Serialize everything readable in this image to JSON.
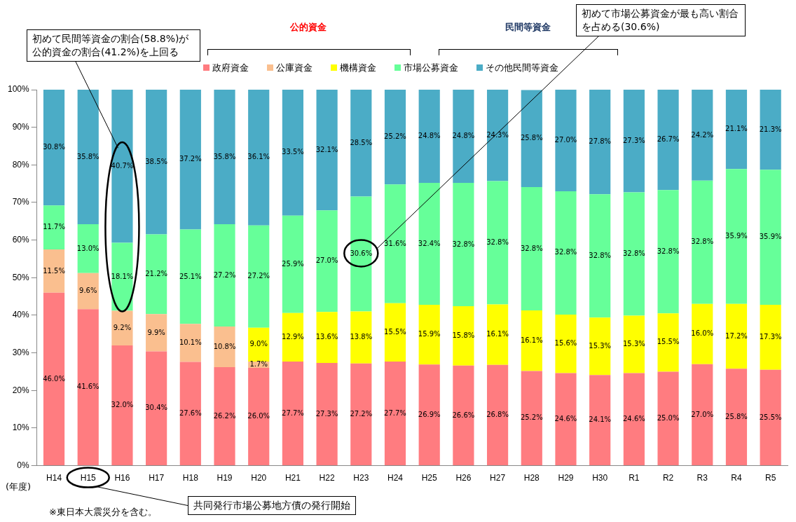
{
  "chart_data": {
    "type": "bar",
    "stacked": true,
    "xlabel": "(年度)",
    "categories": [
      "H14",
      "H15",
      "H16",
      "H17",
      "H18",
      "H19",
      "H20",
      "H21",
      "H22",
      "H23",
      "H24",
      "H25",
      "H26",
      "H27",
      "H28",
      "H29",
      "H30",
      "R1",
      "R2",
      "R3",
      "R4",
      "R5"
    ],
    "series": [
      {
        "name": "政府資金",
        "color": "#ff7c80",
        "values": [
          46.0,
          41.6,
          32.0,
          30.4,
          27.6,
          26.2,
          26.0,
          27.7,
          27.3,
          27.2,
          27.7,
          26.9,
          26.6,
          26.8,
          25.2,
          24.6,
          24.1,
          24.6,
          25.0,
          27.0,
          25.8,
          25.5
        ],
        "value_labels": [
          "46.0%",
          "41.6%",
          "32.0%",
          "30.4%",
          "27.6%",
          "26.2%",
          "26.0%",
          "27.7%",
          "27.3%",
          "27.2%",
          "27.7%",
          "26.9%",
          "26.6%",
          "26.8%",
          "25.2%",
          "24.6%",
          "24.1%",
          "24.6%",
          "25.0%",
          "27.0%",
          "25.8%",
          "25.5%"
        ]
      },
      {
        "name": "公庫資金",
        "color": "#fabf8f",
        "values": [
          11.5,
          9.6,
          9.2,
          9.9,
          10.1,
          10.8,
          1.7,
          null,
          null,
          null,
          null,
          null,
          null,
          null,
          null,
          null,
          null,
          null,
          null,
          null,
          null,
          null
        ],
        "value_labels": [
          "11.5%",
          "9.6%",
          "9.2%",
          "9.9%",
          "10.1%",
          "10.8%",
          "1.7%",
          null,
          null,
          null,
          null,
          null,
          null,
          null,
          null,
          null,
          null,
          null,
          null,
          null,
          null,
          null
        ]
      },
      {
        "name": "機構資金",
        "color": "#ffff00",
        "values": [
          null,
          null,
          null,
          null,
          null,
          null,
          9.0,
          12.9,
          13.6,
          13.8,
          15.5,
          15.9,
          15.8,
          16.1,
          16.1,
          15.6,
          15.3,
          15.3,
          15.5,
          16.0,
          17.2,
          17.3
        ],
        "value_labels": [
          null,
          null,
          null,
          null,
          null,
          null,
          "9.0%",
          "12.9%",
          "13.6%",
          "13.8%",
          "15.5%",
          "15.9%",
          "15.8%",
          "16.1%",
          "16.1%",
          "15.6%",
          "15.3%",
          "15.3%",
          "15.5%",
          "16.0%",
          "17.2%",
          "17.3%"
        ]
      },
      {
        "name": "市場公募資金",
        "color": "#66ff99",
        "values": [
          11.7,
          13.0,
          18.1,
          21.2,
          25.1,
          27.2,
          27.2,
          25.9,
          27.0,
          30.6,
          31.6,
          32.4,
          32.8,
          32.8,
          32.8,
          32.8,
          32.8,
          32.8,
          32.8,
          32.8,
          35.9,
          35.9
        ],
        "value_labels": [
          "11.7%",
          "13.0%",
          "18.1%",
          "21.2%",
          "25.1%",
          "27.2%",
          "27.2%",
          "25.9%",
          "27.0%",
          "30.6%",
          "31.6%",
          "32.4%",
          "32.8%",
          "32.8%",
          "32.8%",
          "32.8%",
          "32.8%",
          "32.8%",
          "32.8%",
          "32.8%",
          "35.9%",
          "35.9%"
        ]
      },
      {
        "name": "その他民間等資金",
        "color": "#4bacc6",
        "values": [
          30.8,
          35.8,
          40.7,
          38.5,
          37.2,
          35.8,
          36.1,
          33.5,
          32.1,
          28.5,
          25.2,
          24.8,
          24.8,
          24.3,
          25.8,
          27.0,
          27.8,
          27.3,
          26.7,
          24.2,
          21.1,
          21.3
        ],
        "value_labels": [
          "30.8%",
          "35.8%",
          "40.7%",
          "38.5%",
          "37.2%",
          "35.8%",
          "36.1%",
          "33.5%",
          "32.1%",
          "28.5%",
          "25.2%",
          "24.8%",
          "24.8%",
          "24.3%",
          "25.8%",
          "27.0%",
          "27.8%",
          "27.3%",
          "26.7%",
          "24.2%",
          "21.1%",
          "21.3%"
        ]
      }
    ],
    "ylim": [
      0,
      100
    ],
    "yticks": [
      {
        "value": 0,
        "label": "0%"
      },
      {
        "value": 10,
        "label": "10%"
      },
      {
        "value": 20,
        "label": "20%"
      },
      {
        "value": 30,
        "label": "30%"
      },
      {
        "value": 40,
        "label": "40%"
      },
      {
        "value": 50,
        "label": "50%"
      },
      {
        "value": 60,
        "label": "60%"
      },
      {
        "value": 70,
        "label": "70%"
      },
      {
        "value": 80,
        "label": "80%"
      },
      {
        "value": 90,
        "label": "90%"
      },
      {
        "value": 100,
        "label": "100%"
      }
    ],
    "grid": false,
    "legend": "top",
    "annotations": [
      "初めて民間等資金の割合(58.8%)が公的資金の割合(41.2%)を上回る",
      "初めて市場公募資金が最も高い割合を占める(30.6%)",
      "共同発行市場公募地方債の発行開始",
      "※東日本大震災分を含む。",
      "公的資金",
      "民間等資金"
    ]
  }
}
